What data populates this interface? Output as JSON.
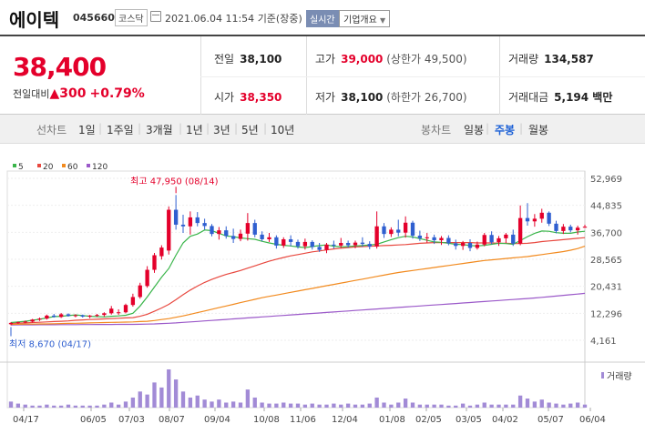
{
  "header": {
    "stock_name": "에이텍",
    "stock_code": "045660",
    "market": "코스닥",
    "datetime": "2021.06.04 11:54",
    "basis": "기준(장중)",
    "realtime_label": "실시간",
    "company_info_label": "기업개요"
  },
  "quote": {
    "current_price": "38,400",
    "change_label": "전일대비",
    "change_value": "300",
    "change_pct": "+0.79%",
    "prev_close_label": "전일",
    "prev_close": "38,100",
    "open_label": "시가",
    "open": "38,350",
    "high_label": "고가",
    "high": "39,000",
    "upper_limit": "(상한가 49,500)",
    "low_label": "저가",
    "low": "38,100",
    "lower_limit": "(하한가 26,700)",
    "volume_label": "거래량",
    "volume": "134,587",
    "amount_label": "거래대금",
    "amount": "5,194 백만"
  },
  "tabs": {
    "line_chart_label": "선차트",
    "periods": [
      "1일",
      "1주일",
      "3개월",
      "1년",
      "3년",
      "5년",
      "10년"
    ],
    "candle_label": "봉차트",
    "candle_periods": [
      "일봉",
      "주봉",
      "월봉"
    ],
    "selected_candle": "주봉"
  },
  "chart_data": {
    "type": "candlestick",
    "legend": [
      "5",
      "20",
      "60",
      "120"
    ],
    "ma_colors": [
      "#3ab54a",
      "#e8483f",
      "#f28a1e",
      "#9b59c9"
    ],
    "up_color": "#e4002b",
    "down_color": "#2f5fd0",
    "y_ticks": [
      "52,969",
      "44,835",
      "36,700",
      "28,565",
      "20,431",
      "12,296",
      "4,161"
    ],
    "ylim": [
      4161,
      52969
    ],
    "x_ticks": [
      "04/17",
      "06/05",
      "07/03",
      "08/07",
      "09/04",
      "10/08",
      "11/06",
      "12/04",
      "01/08",
      "02/05",
      "03/05",
      "04/02",
      "05/07",
      "06/04"
    ],
    "high_annotation": "최고 47,950 (08/14)",
    "low_annotation": "최저 8,670 (04/17)",
    "volume_label": "거래량",
    "ma": {
      "ma5": [
        9500,
        9700,
        9900,
        10200,
        10500,
        10900,
        11300,
        11400,
        11600,
        11800,
        11600,
        11400,
        11300,
        11200,
        11400,
        11500,
        11700,
        12300,
        14500,
        17200,
        20200,
        23200,
        25800,
        29800,
        33500,
        35500,
        36200,
        37400,
        37200,
        36400,
        35600,
        35400,
        35000,
        34800,
        34600,
        34000,
        33500,
        33100,
        32800,
        32600,
        32300,
        32100,
        32400,
        32700,
        32900,
        32500,
        32300,
        32400,
        32600,
        32700,
        32900,
        33100,
        33800,
        34500,
        35100,
        35500,
        35300,
        34800,
        34300,
        33800,
        33700,
        33400,
        33100,
        33000,
        32700,
        32600,
        32800,
        33100,
        33400,
        33300,
        33100,
        34200,
        35400,
        36400,
        37100,
        37000,
        36600,
        36400,
        36400,
        36800,
        37000
      ],
      "ma20": [
        9300,
        9350,
        9400,
        9500,
        9600,
        9700,
        9800,
        9900,
        10000,
        10200,
        10300,
        10400,
        10500,
        10600,
        10700,
        10800,
        10900,
        11000,
        11400,
        12000,
        12900,
        13900,
        15000,
        16400,
        17900,
        19300,
        20500,
        21600,
        22500,
        23300,
        24000,
        24600,
        25200,
        25900,
        26600,
        27300,
        28000,
        28600,
        29100,
        29600,
        30000,
        30400,
        30800,
        31100,
        31400,
        31700,
        31900,
        32100,
        32300,
        32400,
        32500,
        32600,
        32700,
        32800,
        32900,
        33000,
        33200,
        33400,
        33500,
        33600,
        33600,
        33600,
        33600,
        33600,
        33600,
        33500,
        33500,
        33500,
        33400,
        33400,
        33300,
        33300,
        33400,
        33600,
        33900,
        34100,
        34300,
        34500,
        34700,
        34900,
        35100
      ],
      "ma60": [
        9000,
        9000,
        9050,
        9050,
        9100,
        9100,
        9150,
        9200,
        9250,
        9300,
        9350,
        9400,
        9450,
        9500,
        9550,
        9600,
        9650,
        9700,
        9800,
        9900,
        10100,
        10400,
        10700,
        11100,
        11500,
        12000,
        12500,
        13000,
        13500,
        14000,
        14500,
        15000,
        15500,
        16000,
        16500,
        17000,
        17400,
        17800,
        18200,
        18600,
        19000,
        19400,
        19800,
        20200,
        20600,
        21000,
        21400,
        21800,
        22200,
        22600,
        23000,
        23400,
        23800,
        24200,
        24600,
        24900,
        25200,
        25500,
        25800,
        26100,
        26400,
        26700,
        27000,
        27300,
        27600,
        27900,
        28200,
        28400,
        28600,
        28800,
        29000,
        29200,
        29400,
        29700,
        30000,
        30300,
        30600,
        30900,
        31300,
        31800,
        32500
      ],
      "ma120": [
        8800,
        8810,
        8820,
        8830,
        8840,
        8850,
        8860,
        8870,
        8880,
        8890,
        8900,
        8910,
        8920,
        8930,
        8940,
        8950,
        8960,
        8970,
        9000,
        9050,
        9100,
        9200,
        9300,
        9400,
        9550,
        9700,
        9850,
        10000,
        10150,
        10300,
        10450,
        10600,
        10750,
        10900,
        11050,
        11200,
        11350,
        11500,
        11650,
        11800,
        11950,
        12100,
        12250,
        12400,
        12550,
        12700,
        12850,
        13000,
        13150,
        13300,
        13450,
        13600,
        13750,
        13900,
        14050,
        14200,
        14350,
        14500,
        14650,
        14800,
        14950,
        15100,
        15250,
        15400,
        15550,
        15700,
        15850,
        16000,
        16150,
        16300,
        16450,
        16600,
        16750,
        16900,
        17100,
        17300,
        17500,
        17700,
        17900,
        18100,
        18300
      ]
    },
    "candles": [
      [
        9000,
        9600,
        8670,
        9400
      ],
      [
        9400,
        9800,
        9100,
        9600
      ],
      [
        9600,
        10100,
        9300,
        9800
      ],
      [
        9800,
        10600,
        9500,
        10400
      ],
      [
        10400,
        11000,
        10000,
        10700
      ],
      [
        10700,
        11900,
        10400,
        11600
      ],
      [
        11600,
        12100,
        11000,
        11200
      ],
      [
        11200,
        12400,
        10900,
        12000
      ],
      [
        12000,
        12300,
        11300,
        11500
      ],
      [
        11500,
        12000,
        11100,
        11700
      ],
      [
        11700,
        11900,
        11000,
        11300
      ],
      [
        11300,
        11800,
        10800,
        11600
      ],
      [
        11600,
        12100,
        11200,
        11800
      ],
      [
        11800,
        12600,
        11300,
        12300
      ],
      [
        12300,
        14500,
        11900,
        13700
      ],
      [
        12400,
        13500,
        11800,
        12600
      ],
      [
        12600,
        15200,
        12300,
        14800
      ],
      [
        14800,
        18200,
        14300,
        17200
      ],
      [
        17200,
        21500,
        16700,
        20700
      ],
      [
        20500,
        26500,
        20000,
        25400
      ],
      [
        25400,
        30500,
        24500,
        29800
      ],
      [
        29500,
        32800,
        28500,
        32100
      ],
      [
        31200,
        44500,
        30000,
        43500
      ],
      [
        43500,
        47950,
        37500,
        39000
      ],
      [
        39000,
        42000,
        36500,
        38500
      ],
      [
        38500,
        43000,
        36000,
        41200
      ],
      [
        41200,
        42800,
        38500,
        39500
      ],
      [
        39500,
        40800,
        37500,
        38600
      ],
      [
        38600,
        39200,
        35500,
        36200
      ],
      [
        36200,
        38300,
        34500,
        37300
      ],
      [
        37300,
        38500,
        34800,
        35600
      ],
      [
        35600,
        37800,
        33500,
        34700
      ],
      [
        34700,
        37500,
        34000,
        36300
      ],
      [
        36300,
        42500,
        34200,
        39500
      ],
      [
        39500,
        40500,
        35200,
        36000
      ],
      [
        36000,
        37000,
        34000,
        34600
      ],
      [
        34600,
        36500,
        33800,
        35200
      ],
      [
        35200,
        35800,
        31800,
        32700
      ],
      [
        32700,
        35200,
        32000,
        34600
      ],
      [
        34600,
        35800,
        32500,
        33800
      ],
      [
        33800,
        34500,
        31800,
        32500
      ],
      [
        32500,
        34800,
        31500,
        33800
      ],
      [
        33800,
        34300,
        31500,
        32300
      ],
      [
        32300,
        33500,
        30800,
        31400
      ],
      [
        31400,
        33500,
        30400,
        33000
      ],
      [
        33000,
        34200,
        31800,
        32700
      ],
      [
        32700,
        35000,
        32000,
        33500
      ],
      [
        33500,
        34200,
        32100,
        32800
      ],
      [
        32800,
        34200,
        31900,
        33600
      ],
      [
        33600,
        35200,
        32300,
        33200
      ],
      [
        33200,
        34000,
        31600,
        32400
      ],
      [
        32400,
        43000,
        31800,
        38500
      ],
      [
        38500,
        39500,
        35000,
        36200
      ],
      [
        36200,
        38200,
        35300,
        37500
      ],
      [
        37500,
        40500,
        35500,
        36600
      ],
      [
        36600,
        41500,
        35100,
        39600
      ],
      [
        39600,
        40200,
        34800,
        35700
      ],
      [
        35700,
        37200,
        34100,
        34900
      ],
      [
        34900,
        36500,
        33600,
        35200
      ],
      [
        35200,
        36000,
        33200,
        34300
      ],
      [
        34300,
        35600,
        32900,
        35000
      ],
      [
        35000,
        35800,
        32800,
        33400
      ],
      [
        33400,
        34500,
        31500,
        32600
      ],
      [
        32600,
        34100,
        31400,
        33500
      ],
      [
        33500,
        34600,
        31000,
        32000
      ],
      [
        32000,
        33900,
        31500,
        33000
      ],
      [
        33000,
        36500,
        32500,
        35900
      ],
      [
        35900,
        37000,
        33100,
        33700
      ],
      [
        33700,
        35600,
        32600,
        34900
      ],
      [
        34900,
        36500,
        33500,
        36000
      ],
      [
        36000,
        37500,
        32600,
        33300
      ],
      [
        33300,
        44800,
        32800,
        41000
      ],
      [
        41000,
        45500,
        38700,
        40000
      ],
      [
        40000,
        42200,
        38400,
        40800
      ],
      [
        40800,
        43800,
        39600,
        42600
      ],
      [
        42600,
        43000,
        38600,
        39300
      ],
      [
        39300,
        40200,
        36400,
        37100
      ],
      [
        37100,
        39200,
        36200,
        38400
      ],
      [
        38400,
        39000,
        36700,
        37300
      ],
      [
        37300,
        38700,
        36000,
        38100
      ],
      [
        38100,
        39000,
        38100,
        38400
      ]
    ],
    "volumes": [
      6,
      4,
      3,
      2,
      2,
      3,
      2,
      2,
      3,
      2,
      2,
      2,
      2,
      3,
      5,
      3,
      6,
      10,
      16,
      13,
      25,
      20,
      38,
      28,
      16,
      10,
      12,
      8,
      6,
      8,
      5,
      6,
      5,
      18,
      10,
      5,
      4,
      4,
      5,
      4,
      4,
      3,
      4,
      3,
      3,
      4,
      3,
      4,
      3,
      3,
      4,
      10,
      5,
      3,
      5,
      9,
      5,
      3,
      3,
      3,
      3,
      2,
      2,
      4,
      2,
      3,
      5,
      3,
      3,
      3,
      3,
      12,
      9,
      6,
      8,
      5,
      4,
      3,
      4,
      5,
      3
    ]
  }
}
